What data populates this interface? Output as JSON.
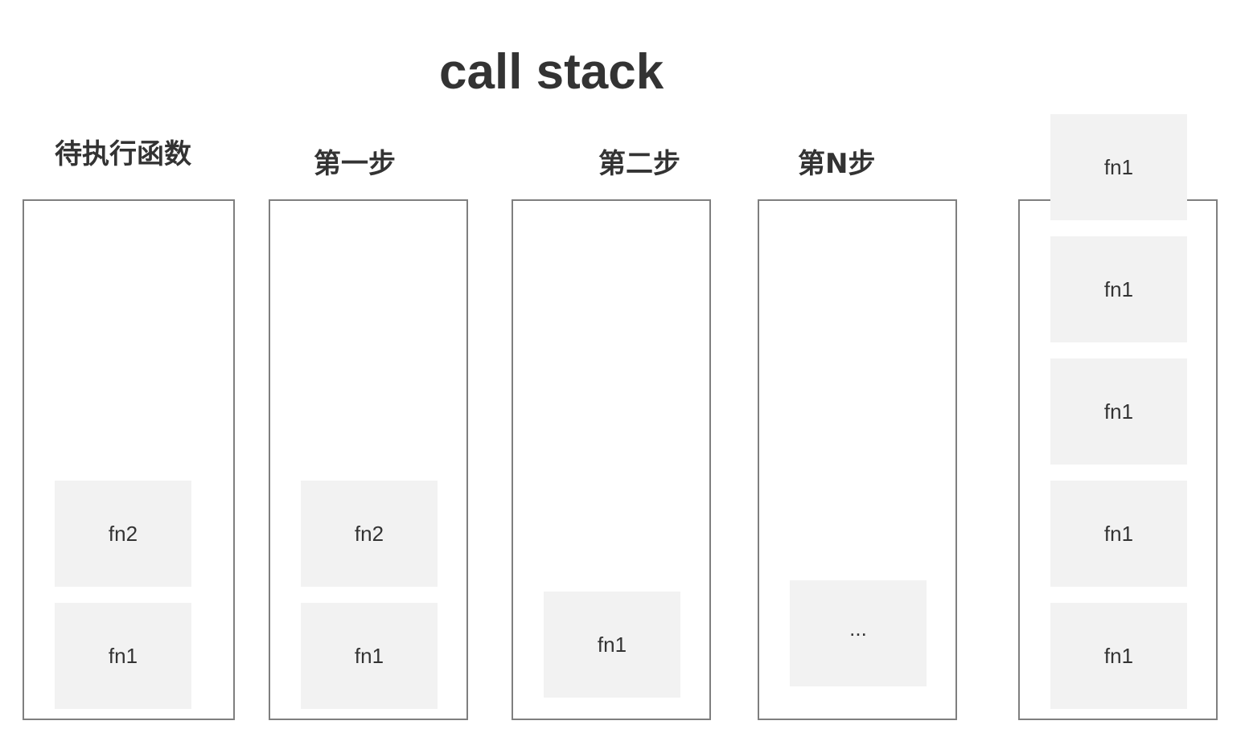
{
  "title": "call stack",
  "stacks": [
    {
      "label": "待执行函数",
      "frames": [
        "fn2",
        "fn1"
      ]
    },
    {
      "label": "第一步",
      "frames": [
        "fn2",
        "fn1"
      ]
    },
    {
      "label": "第二步",
      "frames": [
        "fn1"
      ]
    },
    {
      "label": "第N步",
      "frames": [
        "..."
      ]
    },
    {
      "label": "",
      "frames": [
        "fn1",
        "fn1",
        "fn1",
        "fn1",
        "fn1"
      ]
    }
  ]
}
